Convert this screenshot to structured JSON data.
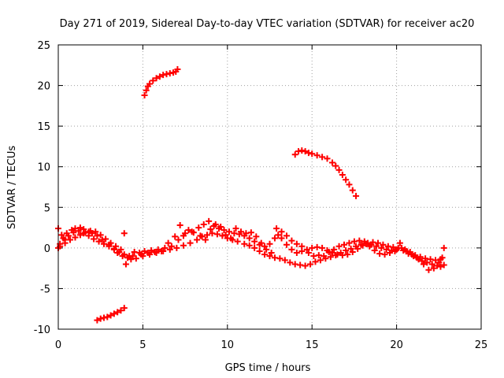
{
  "chart_data": {
    "type": "scatter",
    "title": "Day 271 of 2019, Sidereal Day-to-day VTEC variation (SDTVAR) for receiver ac20",
    "xlabel": "GPS time / hours",
    "ylabel": "SDTVAR / TECUs",
    "xlim": [
      0,
      25
    ],
    "ylim": [
      -10,
      25
    ],
    "xticks": [
      0,
      5,
      10,
      15,
      20,
      25
    ],
    "yticks": [
      -10,
      -5,
      0,
      5,
      10,
      15,
      20,
      25
    ],
    "grid": true,
    "marker": "+",
    "series": [
      {
        "name": "main band A",
        "color": "#ff0000",
        "points": [
          [
            0.0,
            0.0
          ],
          [
            0.1,
            0.5
          ],
          [
            0.3,
            1.2
          ],
          [
            0.5,
            1.8
          ],
          [
            0.8,
            2.2
          ],
          [
            1.0,
            2.4
          ],
          [
            1.3,
            2.5
          ],
          [
            1.5,
            2.3
          ],
          [
            1.8,
            2.0
          ],
          [
            2.0,
            1.8
          ],
          [
            2.3,
            1.5
          ],
          [
            2.6,
            1.0
          ],
          [
            3.0,
            0.4
          ],
          [
            3.3,
            -0.1
          ],
          [
            3.6,
            -0.5
          ],
          [
            3.9,
            -0.8
          ],
          [
            4.1,
            -1.2
          ],
          [
            4.3,
            -1.4
          ],
          [
            4.6,
            -1.3
          ],
          [
            5.0,
            -1.0
          ],
          [
            5.4,
            -0.8
          ],
          [
            5.8,
            -0.6
          ],
          [
            6.2,
            -0.4
          ],
          [
            6.6,
            -0.2
          ],
          [
            7.0,
            0.0
          ],
          [
            7.4,
            0.3
          ],
          [
            7.8,
            0.6
          ],
          [
            8.2,
            1.0
          ],
          [
            8.5,
            1.4
          ],
          [
            8.8,
            1.6
          ],
          [
            9.1,
            1.8
          ],
          [
            9.4,
            1.7
          ],
          [
            9.7,
            1.5
          ],
          [
            10.0,
            1.2
          ],
          [
            10.3,
            1.0
          ],
          [
            10.6,
            0.8
          ],
          [
            11.0,
            0.5
          ],
          [
            11.3,
            0.3
          ],
          [
            11.6,
            0.0
          ],
          [
            11.9,
            -0.4
          ],
          [
            12.2,
            -0.8
          ],
          [
            12.5,
            -1.0
          ],
          [
            12.8,
            -1.2
          ],
          [
            13.1,
            -1.3
          ],
          [
            13.4,
            -1.5
          ],
          [
            13.7,
            -1.8
          ],
          [
            14.0,
            -2.0
          ],
          [
            14.3,
            -2.1
          ],
          [
            14.6,
            -2.2
          ],
          [
            14.9,
            -2.0
          ],
          [
            15.2,
            -1.7
          ],
          [
            15.5,
            -1.5
          ],
          [
            15.8,
            -1.3
          ],
          [
            16.1,
            -1.1
          ],
          [
            16.4,
            -0.9
          ],
          [
            16.7,
            -0.6
          ],
          [
            17.0,
            -0.3
          ],
          [
            17.3,
            -0.1
          ],
          [
            17.6,
            0.2
          ],
          [
            17.9,
            0.4
          ],
          [
            18.2,
            0.5
          ],
          [
            18.5,
            0.4
          ],
          [
            18.8,
            0.2
          ],
          [
            19.1,
            0.0
          ],
          [
            19.4,
            -0.2
          ],
          [
            19.7,
            -0.3
          ],
          [
            20.0,
            -0.2
          ],
          [
            20.3,
            0.0
          ],
          [
            20.6,
            -0.4
          ],
          [
            20.9,
            -0.8
          ],
          [
            21.2,
            -1.2
          ],
          [
            21.5,
            -1.6
          ],
          [
            21.8,
            -1.8
          ],
          [
            22.1,
            -2.0
          ],
          [
            22.4,
            -2.2
          ],
          [
            22.6,
            -2.3
          ],
          [
            22.8,
            -2.1
          ]
        ]
      },
      {
        "name": "main band B",
        "color": "#ff0000",
        "points": [
          [
            0.0,
            2.4
          ],
          [
            0.2,
            1.6
          ],
          [
            0.4,
            1.0
          ],
          [
            0.6,
            1.5
          ],
          [
            0.9,
            1.9
          ],
          [
            1.2,
            2.1
          ],
          [
            1.5,
            1.8
          ],
          [
            1.8,
            1.5
          ],
          [
            2.1,
            1.1
          ],
          [
            2.4,
            0.8
          ],
          [
            2.7,
            0.5
          ],
          [
            3.0,
            0.2
          ],
          [
            3.3,
            -0.2
          ],
          [
            3.5,
            -0.6
          ],
          [
            3.8,
            -1.0
          ],
          [
            4.0,
            -2.0
          ],
          [
            4.2,
            -1.0
          ],
          [
            4.5,
            -0.5
          ],
          [
            4.8,
            -0.6
          ],
          [
            5.1,
            -0.4
          ],
          [
            5.5,
            -0.3
          ],
          [
            5.9,
            -0.2
          ],
          [
            6.3,
            0.0
          ],
          [
            6.7,
            0.2
          ],
          [
            7.1,
            1.0
          ],
          [
            7.4,
            1.5
          ],
          [
            7.7,
            2.2
          ],
          [
            8.0,
            1.9
          ],
          [
            8.3,
            2.5
          ],
          [
            8.6,
            2.9
          ],
          [
            8.9,
            3.3
          ],
          [
            9.2,
            2.7
          ],
          [
            9.5,
            2.4
          ],
          [
            9.8,
            2.2
          ],
          [
            10.1,
            2.0
          ],
          [
            10.4,
            1.8
          ],
          [
            10.7,
            1.7
          ],
          [
            11.0,
            1.5
          ],
          [
            11.3,
            1.2
          ],
          [
            11.6,
            0.8
          ],
          [
            11.9,
            0.4
          ],
          [
            12.2,
            0.2
          ],
          [
            12.5,
            0.5
          ],
          [
            12.8,
            1.2
          ],
          [
            13.0,
            1.6
          ],
          [
            13.2,
            1.2
          ],
          [
            13.5,
            0.4
          ],
          [
            13.8,
            -0.2
          ],
          [
            14.1,
            -0.6
          ],
          [
            14.4,
            -0.4
          ],
          [
            14.7,
            -0.2
          ],
          [
            15.0,
            0.0
          ],
          [
            15.3,
            0.1
          ],
          [
            15.6,
            0.0
          ],
          [
            15.9,
            -0.3
          ],
          [
            16.2,
            -0.6
          ],
          [
            16.5,
            -0.8
          ],
          [
            16.8,
            -0.9
          ],
          [
            17.1,
            -0.8
          ],
          [
            17.4,
            -0.5
          ],
          [
            17.7,
            -0.1
          ],
          [
            18.0,
            0.3
          ],
          [
            18.3,
            0.6
          ],
          [
            18.6,
            0.7
          ],
          [
            18.9,
            0.6
          ],
          [
            19.2,
            0.4
          ],
          [
            19.5,
            0.2
          ],
          [
            19.8,
            0.1
          ],
          [
            20.1,
            0.0
          ],
          [
            20.4,
            -0.3
          ],
          [
            20.7,
            -0.7
          ],
          [
            21.0,
            -1.0
          ],
          [
            21.3,
            -1.4
          ],
          [
            21.6,
            -2.0
          ],
          [
            21.9,
            -2.7
          ],
          [
            22.2,
            -2.5
          ],
          [
            22.5,
            -1.8
          ],
          [
            22.7,
            -1.2
          ]
        ]
      },
      {
        "name": "main band C",
        "color": "#ff0000",
        "points": [
          [
            0.1,
            0.2
          ],
          [
            0.4,
            0.6
          ],
          [
            0.7,
            1.0
          ],
          [
            1.0,
            1.3
          ],
          [
            1.3,
            1.6
          ],
          [
            1.6,
            1.9
          ],
          [
            1.9,
            2.1
          ],
          [
            2.2,
            2.0
          ],
          [
            2.5,
            1.6
          ],
          [
            2.8,
            1.1
          ],
          [
            3.1,
            0.6
          ],
          [
            3.4,
            0.2
          ],
          [
            3.7,
            -0.2
          ],
          [
            3.9,
            1.8
          ],
          [
            4.4,
            -1.0
          ],
          [
            4.9,
            -0.8
          ],
          [
            5.3,
            -0.6
          ],
          [
            5.7,
            -0.5
          ],
          [
            6.1,
            -0.4
          ],
          [
            6.5,
            0.6
          ],
          [
            6.9,
            1.4
          ],
          [
            7.2,
            2.8
          ],
          [
            7.5,
            1.8
          ],
          [
            7.9,
            2.0
          ],
          [
            8.4,
            1.5
          ],
          [
            8.7,
            1.0
          ],
          [
            9.0,
            2.3
          ],
          [
            9.3,
            2.9
          ],
          [
            9.6,
            2.6
          ],
          [
            9.9,
            1.6
          ],
          [
            10.2,
            1.2
          ],
          [
            10.5,
            2.4
          ],
          [
            10.8,
            2.0
          ],
          [
            11.1,
            1.8
          ],
          [
            11.4,
            1.9
          ],
          [
            11.7,
            1.4
          ],
          [
            12.0,
            0.6
          ],
          [
            12.3,
            -0.2
          ],
          [
            12.6,
            -0.6
          ],
          [
            12.9,
            2.4
          ],
          [
            13.2,
            2.0
          ],
          [
            13.5,
            1.5
          ],
          [
            13.8,
            0.9
          ],
          [
            14.1,
            0.5
          ],
          [
            14.4,
            0.2
          ],
          [
            14.8,
            -0.6
          ],
          [
            15.1,
            -1.0
          ],
          [
            15.4,
            -0.9
          ],
          [
            15.7,
            -1.0
          ],
          [
            16.0,
            -0.5
          ],
          [
            16.3,
            -0.2
          ],
          [
            16.6,
            0.2
          ],
          [
            16.9,
            0.4
          ],
          [
            17.2,
            0.6
          ],
          [
            17.5,
            0.8
          ],
          [
            17.8,
            0.9
          ],
          [
            18.1,
            0.8
          ],
          [
            18.4,
            0.2
          ],
          [
            18.7,
            -0.3
          ],
          [
            19.0,
            -0.7
          ],
          [
            19.3,
            -0.8
          ],
          [
            19.6,
            -0.6
          ],
          [
            19.9,
            -0.4
          ],
          [
            20.2,
            0.6
          ],
          [
            20.5,
            -0.2
          ],
          [
            20.8,
            -0.5
          ],
          [
            21.1,
            -0.9
          ],
          [
            21.4,
            -1.1
          ],
          [
            21.7,
            -1.3
          ],
          [
            22.0,
            -1.4
          ],
          [
            22.3,
            -1.5
          ],
          [
            22.6,
            -1.4
          ],
          [
            22.8,
            0.0
          ]
        ]
      },
      {
        "name": "arc 5-7 h",
        "color": "#ff0000",
        "points": [
          [
            5.1,
            18.8
          ],
          [
            5.2,
            19.4
          ],
          [
            5.3,
            19.9
          ],
          [
            5.4,
            20.2
          ],
          [
            5.6,
            20.6
          ],
          [
            5.8,
            20.9
          ],
          [
            6.0,
            21.1
          ],
          [
            6.2,
            21.3
          ],
          [
            6.4,
            21.4
          ],
          [
            6.6,
            21.5
          ],
          [
            6.8,
            21.6
          ],
          [
            6.95,
            21.7
          ],
          [
            7.05,
            22.0
          ]
        ]
      },
      {
        "name": "arc 2-4 h",
        "color": "#ff0000",
        "points": [
          [
            2.3,
            -8.9
          ],
          [
            2.5,
            -8.7
          ],
          [
            2.7,
            -8.6
          ],
          [
            2.9,
            -8.5
          ],
          [
            3.1,
            -8.3
          ],
          [
            3.3,
            -8.1
          ],
          [
            3.5,
            -7.9
          ],
          [
            3.7,
            -7.7
          ],
          [
            3.9,
            -7.4
          ]
        ]
      },
      {
        "name": "arc 14-17.6 h",
        "color": "#ff0000",
        "points": [
          [
            14.0,
            11.5
          ],
          [
            14.2,
            11.9
          ],
          [
            14.4,
            12.0
          ],
          [
            14.6,
            11.9
          ],
          [
            14.8,
            11.7
          ],
          [
            15.0,
            11.6
          ],
          [
            15.3,
            11.4
          ],
          [
            15.6,
            11.2
          ],
          [
            15.9,
            11.0
          ],
          [
            16.2,
            10.5
          ],
          [
            16.4,
            10.1
          ],
          [
            16.6,
            9.6
          ],
          [
            16.8,
            9.0
          ],
          [
            17.0,
            8.4
          ],
          [
            17.2,
            7.8
          ],
          [
            17.4,
            7.1
          ],
          [
            17.6,
            6.4
          ]
        ]
      }
    ]
  }
}
